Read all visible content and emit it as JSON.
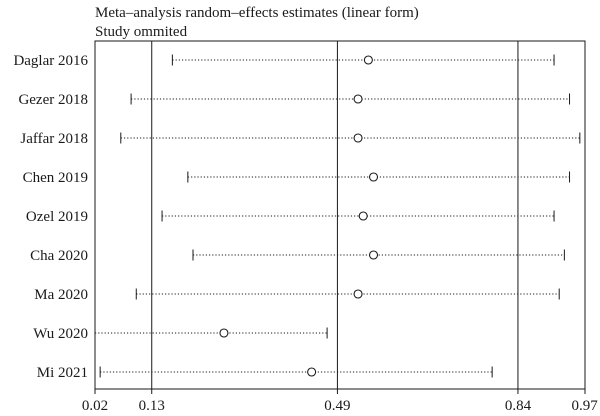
{
  "chart_data": {
    "type": "scatter",
    "title": "Meta–analysis random–effects estimates (linear form)",
    "subtitle": "Study ommited",
    "x_ticks": [
      0.02,
      0.13,
      0.49,
      0.84,
      0.97
    ],
    "x_tick_labels": [
      "0.02",
      "0.13",
      "0.49",
      "0.84",
      "0.97"
    ],
    "xlim": [
      0.02,
      0.97
    ],
    "reference_lines": [
      0.13,
      0.49,
      0.84
    ],
    "studies": [
      {
        "label": "Daglar 2016",
        "estimate": 0.55,
        "lower": 0.17,
        "upper": 0.91
      },
      {
        "label": "Gezer 2018",
        "estimate": 0.53,
        "lower": 0.09,
        "upper": 0.94
      },
      {
        "label": "Jaffar 2018",
        "estimate": 0.53,
        "lower": 0.07,
        "upper": 0.96
      },
      {
        "label": "Chen 2019",
        "estimate": 0.56,
        "lower": 0.2,
        "upper": 0.94
      },
      {
        "label": "Ozel 2019",
        "estimate": 0.54,
        "lower": 0.15,
        "upper": 0.91
      },
      {
        "label": "Cha 2020",
        "estimate": 0.56,
        "lower": 0.21,
        "upper": 0.93
      },
      {
        "label": "Ma 2020",
        "estimate": 0.53,
        "lower": 0.1,
        "upper": 0.92
      },
      {
        "label": "Wu 2020",
        "estimate": 0.27,
        "lower": 0.02,
        "upper": 0.47
      },
      {
        "label": "Mi 2021",
        "estimate": 0.44,
        "lower": 0.03,
        "upper": 0.79
      }
    ]
  }
}
